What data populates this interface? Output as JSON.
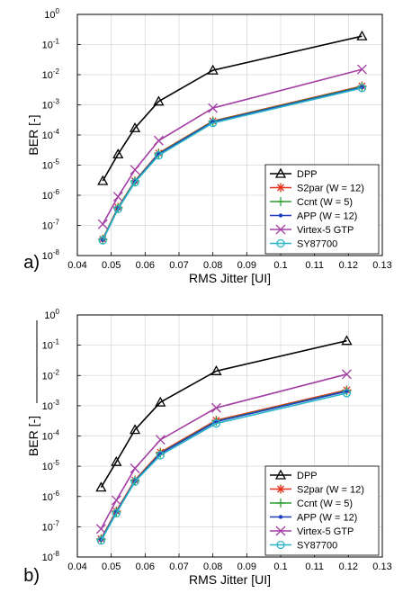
{
  "chart_data": [
    {
      "type": "line",
      "panel_label": "a)",
      "title": "",
      "xlabel": "RMS Jitter [UI]",
      "ylabel": "BER [-]",
      "xlim": [
        0.04,
        0.13
      ],
      "ylim_exp": [
        -8,
        0
      ],
      "yscale": "log",
      "grid": true,
      "legend_position": "bottom-right",
      "xticks": [
        "0.04",
        "0.05",
        "0.06",
        "0.07",
        "0.08",
        "0.09",
        "0.1",
        "0.11",
        "0.12",
        "0.13"
      ],
      "yticks": [
        "10-8",
        "10-7",
        "10-6",
        "10-5",
        "10-4",
        "10-3",
        "10-2",
        "10-1",
        "100"
      ],
      "series": [
        {
          "name": "DPP",
          "color": "#000000",
          "marker": "triangle",
          "x": [
            0.0475,
            0.052,
            0.057,
            0.064,
            0.08,
            0.124
          ],
          "y": [
            3e-06,
            2.3e-05,
            0.00017,
            0.0013,
            0.014,
            0.19
          ]
        },
        {
          "name": "S2par (W = 12)",
          "color": "#e8301c",
          "marker": "asterisk",
          "x": [
            0.0475,
            0.052,
            0.057,
            0.064,
            0.08,
            0.124
          ],
          "y": [
            3.5e-08,
            4e-07,
            3e-06,
            2.5e-05,
            0.00029,
            0.0042
          ]
        },
        {
          "name": "Ccnt (W = 5)",
          "color": "#2ca02c",
          "marker": "plus",
          "x": [
            0.0475,
            0.052,
            0.057,
            0.064,
            0.08,
            0.124
          ],
          "y": [
            3.4e-08,
            3.8e-07,
            2.9e-06,
            2.4e-05,
            0.00028,
            0.004
          ]
        },
        {
          "name": "APP (W = 12)",
          "color": "#1f3fbf",
          "marker": "dot",
          "x": [
            0.0475,
            0.052,
            0.057,
            0.064,
            0.08,
            0.124
          ],
          "y": [
            3.3e-08,
            3.6e-07,
            2.8e-06,
            2.3e-05,
            0.00027,
            0.0038
          ]
        },
        {
          "name": "Virtex-5 GTP",
          "color": "#a43fa4",
          "marker": "x",
          "x": [
            0.0475,
            0.052,
            0.057,
            0.064,
            0.08,
            0.124
          ],
          "y": [
            1.1e-07,
            9e-07,
            7e-06,
            6.5e-05,
            0.00078,
            0.015
          ]
        },
        {
          "name": "SY87700",
          "color": "#2bb5c8",
          "marker": "circle",
          "x": [
            0.0475,
            0.052,
            0.057,
            0.064,
            0.08,
            0.124
          ],
          "y": [
            3.2e-08,
            3.5e-07,
            2.7e-06,
            2.1e-05,
            0.00025,
            0.0036
          ]
        }
      ]
    },
    {
      "type": "line",
      "panel_label": "b)",
      "title": "",
      "xlabel": "RMS Jitter [UI]",
      "ylabel": "BER [-]",
      "xlim": [
        0.04,
        0.13
      ],
      "ylim_exp": [
        -8,
        0
      ],
      "yscale": "log",
      "grid": true,
      "legend_position": "bottom-right",
      "xticks": [
        "0.04",
        "0.05",
        "0.06",
        "0.07",
        "0.08",
        "0.09",
        "0.1",
        "0.11",
        "0.12",
        "0.13"
      ],
      "yticks": [
        "10-8",
        "10-7",
        "10-6",
        "10-5",
        "10-4",
        "10-3",
        "10-2",
        "10-1",
        "100"
      ],
      "series": [
        {
          "name": "DPP",
          "color": "#000000",
          "marker": "triangle",
          "x": [
            0.047,
            0.0515,
            0.057,
            0.0645,
            0.081,
            0.1195
          ],
          "y": [
            2e-06,
            1.4e-05,
            0.00016,
            0.0013,
            0.014,
            0.14
          ]
        },
        {
          "name": "S2par (W = 12)",
          "color": "#e8301c",
          "marker": "asterisk",
          "x": [
            0.047,
            0.0515,
            0.057,
            0.0645,
            0.081,
            0.1195
          ],
          "y": [
            4e-08,
            3.3e-07,
            3.5e-06,
            2.9e-05,
            0.00033,
            0.0033
          ]
        },
        {
          "name": "Ccnt (W = 5)",
          "color": "#2ca02c",
          "marker": "plus",
          "x": [
            0.047,
            0.0515,
            0.057,
            0.0645,
            0.081,
            0.1195
          ],
          "y": [
            3.8e-08,
            3.1e-07,
            3.3e-06,
            2.7e-05,
            0.00031,
            0.0031
          ]
        },
        {
          "name": "APP (W = 12)",
          "color": "#1f3fbf",
          "marker": "dot",
          "x": [
            0.047,
            0.0515,
            0.057,
            0.0645,
            0.081,
            0.1195
          ],
          "y": [
            3.7e-08,
            3e-07,
            3.2e-06,
            2.6e-05,
            0.0003,
            0.003
          ]
        },
        {
          "name": "Virtex-5 GTP",
          "color": "#a43fa4",
          "marker": "x",
          "x": [
            0.047,
            0.0515,
            0.057,
            0.0645,
            0.081,
            0.1195
          ],
          "y": [
            8.5e-08,
            7.5e-07,
            8.5e-06,
            7.5e-05,
            0.00085,
            0.011
          ]
        },
        {
          "name": "SY87700",
          "color": "#2bb5c8",
          "marker": "circle",
          "x": [
            0.047,
            0.0515,
            0.057,
            0.0645,
            0.081,
            0.1195
          ],
          "y": [
            3.5e-08,
            2.8e-07,
            3.1e-06,
            2.3e-05,
            0.00026,
            0.0026
          ]
        }
      ]
    }
  ]
}
